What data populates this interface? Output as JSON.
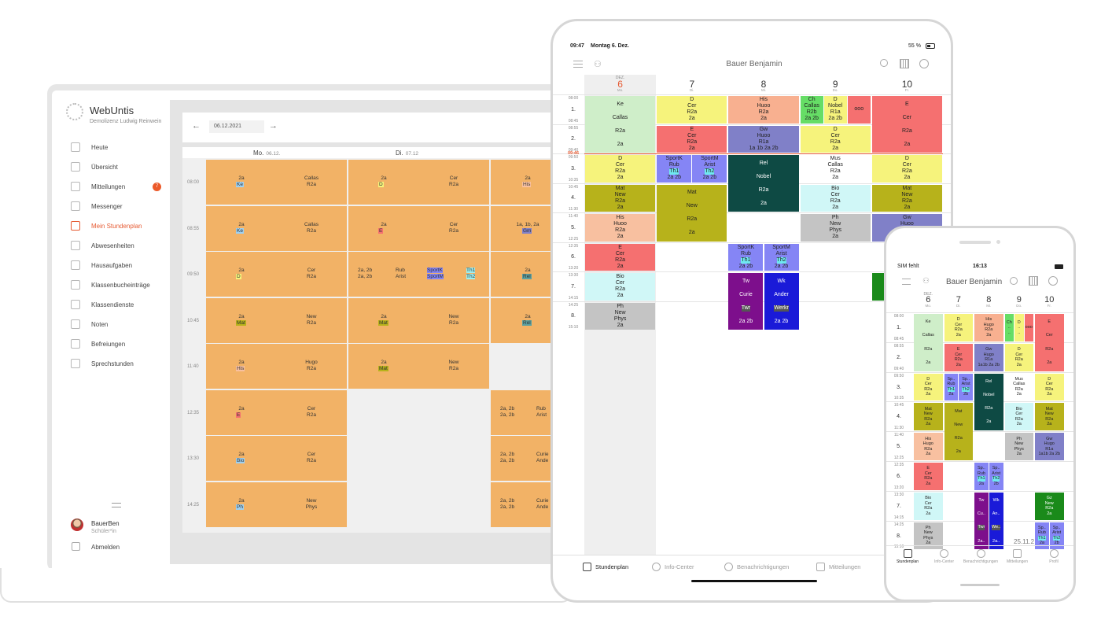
{
  "laptop": {
    "app_name": "WebUntis",
    "school": "Demolizenz Ludwig Reinwein",
    "date": "06.12.2021",
    "nav": [
      {
        "label": "Heute",
        "icon": "dashboard-icon"
      },
      {
        "label": "Übersicht",
        "icon": "overview-icon"
      },
      {
        "label": "Mitteilungen",
        "icon": "mail-icon",
        "badge": "7"
      },
      {
        "label": "Messenger",
        "icon": "chat-icon"
      },
      {
        "label": "Mein Stundenplan",
        "icon": "calendar-icon",
        "active": true
      },
      {
        "label": "Abwesenheiten",
        "icon": "absence-icon"
      },
      {
        "label": "Hausaufgaben",
        "icon": "homework-icon"
      },
      {
        "label": "Klassenbucheinträge",
        "icon": "classbook-icon"
      },
      {
        "label": "Klassendienste",
        "icon": "class-duties-icon"
      },
      {
        "label": "Noten",
        "icon": "grades-icon"
      },
      {
        "label": "Befreiungen",
        "icon": "exemption-icon"
      },
      {
        "label": "Sprechstunden",
        "icon": "office-hours-icon"
      }
    ],
    "user_name": "BauerBen",
    "user_role": "Schüler*in",
    "logout": "Abmelden",
    "days": [
      {
        "name": "Mo.",
        "date": "06.12."
      },
      {
        "name": "Di.",
        "date": "07.12"
      }
    ],
    "times": [
      "08:00",
      "08:55",
      "09:50",
      "10:45",
      "11:40",
      "12:35",
      "13:30",
      "14:25"
    ],
    "cells": [
      {
        "col": 0,
        "row": 0,
        "a": "2a",
        "b": "Ke",
        "c": "Callas",
        "d": "R2a"
      },
      {
        "col": 0,
        "row": 1,
        "a": "2a",
        "b": "Ke",
        "c": "Callas",
        "d": "R2a"
      },
      {
        "col": 0,
        "row": 2,
        "a": "2a",
        "b": "D",
        "c": "Cer",
        "d": "R2a"
      },
      {
        "col": 0,
        "row": 3,
        "a": "2a",
        "b": "Mat",
        "c": "New",
        "d": "R2a"
      },
      {
        "col": 0,
        "row": 4,
        "a": "2a",
        "b": "His",
        "c": "Hugo",
        "d": "R2a"
      },
      {
        "col": 0,
        "row": 5,
        "a": "2a",
        "b": "E",
        "c": "Cer",
        "d": "R2a"
      },
      {
        "col": 0,
        "row": 6,
        "a": "2a",
        "b": "Bio",
        "c": "Cer",
        "d": "R2a"
      },
      {
        "col": 0,
        "row": 7,
        "a": "2a",
        "b": "Ph",
        "c": "New",
        "d": "Phys"
      },
      {
        "col": 1,
        "row": 0,
        "a": "2a",
        "b": "D",
        "c": "Cer",
        "d": "R2a"
      },
      {
        "col": 1,
        "row": 1,
        "a": "2a",
        "b": "E",
        "c": "Cer",
        "d": "R2a"
      },
      {
        "col": 1,
        "row": 3,
        "a": "2a",
        "b": "Mat",
        "c": "New",
        "d": "R2a"
      },
      {
        "col": 1,
        "row": 4,
        "a": "2a",
        "b": "Mat",
        "c": "New",
        "d": "R2a"
      }
    ],
    "di_row2": {
      "a": "2a, 2b",
      "b": "2a, 2b",
      "c": "Rub",
      "d": "Arist",
      "e": "SportK",
      "f": "SportM",
      "g": "Th1",
      "h": "Th2"
    },
    "col3_cells": [
      {
        "row": 0,
        "a": "2a",
        "b": "His"
      },
      {
        "row": 1,
        "a": "1a, 1b, 2a",
        "b": "Gm"
      },
      {
        "row": 2,
        "a": "2a",
        "b": "Rel"
      },
      {
        "row": 3,
        "a": "2a",
        "b": "Rel"
      },
      {
        "row": 5,
        "a": "2a, 2b",
        "b": "2a, 2b",
        "c": "Rub",
        "d": "Arist"
      },
      {
        "row": 6,
        "a": "2a, 2b",
        "b": "2a, 2b",
        "c": "Curie",
        "d": "Ande"
      },
      {
        "row": 7,
        "a": "2a, 2b",
        "b": "2a, 2b",
        "c": "Curie",
        "d": "Ande"
      }
    ]
  },
  "ipad": {
    "time": "09:47",
    "date": "Montag 6. Dez.",
    "battery": "55 %",
    "title": "Bauer Benjamin",
    "month": "DEZ.",
    "days": [
      {
        "num": "6",
        "wd": "Mo.",
        "today": true
      },
      {
        "num": "7",
        "wd": "Di."
      },
      {
        "num": "8",
        "wd": "Mi."
      },
      {
        "num": "9",
        "wd": "Do."
      },
      {
        "num": "10",
        "wd": "Fr."
      }
    ],
    "periods": [
      {
        "n": "1.",
        "s": "08:00",
        "e": "08:45"
      },
      {
        "n": "2.",
        "s": "08:55",
        "e": "09:40"
      },
      {
        "n": "3.",
        "s": "09:50",
        "e": "10:35"
      },
      {
        "n": "4.",
        "s": "10:45",
        "e": "11:30"
      },
      {
        "n": "5.",
        "s": "11:40",
        "e": "12:25"
      },
      {
        "n": "6.",
        "s": "12:35",
        "e": "13:20"
      },
      {
        "n": "7.",
        "s": "13:30",
        "e": "14:15"
      },
      {
        "n": "8.",
        "s": "14:25",
        "e": "15:10"
      }
    ],
    "now": "09:46",
    "tabs": [
      "Stundenplan",
      "Info-Center",
      "Benachrichtigungen",
      "Mitteilungen"
    ],
    "lessons": [
      {
        "d": 0,
        "p": 0,
        "span": 2,
        "bg": "#cfeec9",
        "lines": [
          "Ke",
          "Callas",
          "R2a",
          "2a"
        ],
        "spread": true
      },
      {
        "d": 0,
        "p": 2,
        "bg": "#f6f37c",
        "lines": [
          "D",
          "Cer",
          "R2a",
          "2a"
        ]
      },
      {
        "d": 0,
        "p": 3,
        "bg": "#b7b21b",
        "lines": [
          "Mat",
          "New",
          "R2a",
          "2a"
        ]
      },
      {
        "d": 0,
        "p": 4,
        "bg": "#f8c0a0",
        "lines": [
          "His",
          "Huoo",
          "R2a",
          "2a"
        ]
      },
      {
        "d": 0,
        "p": 5,
        "bg": "#f57070",
        "lines": [
          "E",
          "Cer",
          "R2a",
          "2a"
        ]
      },
      {
        "d": 0,
        "p": 6,
        "bg": "#d0f7f7",
        "lines": [
          "Bio",
          "Cer",
          "R2a",
          "2a"
        ]
      },
      {
        "d": 0,
        "p": 7,
        "bg": "#c4c4c4",
        "lines": [
          "Ph",
          "New",
          "Phys",
          "2a"
        ]
      },
      {
        "d": 1,
        "p": 0,
        "bg": "#f6f37c",
        "lines": [
          "D",
          "Cer",
          "R2a",
          "2a"
        ]
      },
      {
        "d": 1,
        "p": 1,
        "bg": "#f57070",
        "lines": [
          "E",
          "Cer",
          "R2a",
          "2a"
        ]
      },
      {
        "d": 1,
        "p": 2,
        "half": 0,
        "bg": "#8585f5",
        "lines": [
          "SportK",
          "Rub",
          "Th1",
          "2a 2b"
        ]
      },
      {
        "d": 1,
        "p": 2,
        "half": 1,
        "bg": "#8585f5",
        "lines": [
          "SportM",
          "Arist",
          "Th2",
          "2a 2b"
        ]
      },
      {
        "d": 1,
        "p": 3,
        "span": 2,
        "bg": "#b7b21b",
        "lines": [
          "Mat",
          "New",
          "R2a",
          "2a"
        ],
        "spread": true
      },
      {
        "d": 2,
        "p": 0,
        "bg": "#f8b090",
        "lines": [
          "His",
          "Huoo",
          "R2a",
          "2a"
        ]
      },
      {
        "d": 2,
        "p": 1,
        "bg": "#8080c8",
        "lines": [
          "Gw",
          "Huoo",
          "R1a",
          "1a 1b 2a 2b"
        ]
      },
      {
        "d": 2,
        "p": 2,
        "span": 2,
        "bg": "#0e4a44",
        "fg": "#fff",
        "lines": [
          "Rel",
          "Nobel",
          "R2a",
          "2a"
        ],
        "spread": true
      },
      {
        "d": 2,
        "p": 5,
        "half": 0,
        "bg": "#8585f5",
        "lines": [
          "SportK",
          "Rub",
          "Th1",
          "2a 2b"
        ]
      },
      {
        "d": 2,
        "p": 5,
        "half": 1,
        "bg": "#8585f5",
        "lines": [
          "SportM",
          "Arist",
          "Th2",
          "2a 2b"
        ]
      },
      {
        "d": 2,
        "p": 6,
        "span": 2,
        "half": 0,
        "bg": "#7d0f8c",
        "fg": "#fff",
        "lines": [
          "Tw",
          "Curie",
          "Twr",
          "2a 2b"
        ],
        "spread": true
      },
      {
        "d": 2,
        "p": 6,
        "span": 2,
        "half": 1,
        "bg": "#1a1ad8",
        "fg": "#fff",
        "lines": [
          "Wk",
          "Ander",
          "Werkr",
          "2a 2b"
        ],
        "spread": true
      },
      {
        "d": 3,
        "p": 0,
        "q": 0,
        "bg": "#66dd66",
        "lines": [
          "Ch",
          "Callas",
          "R2b",
          "2a 2b"
        ]
      },
      {
        "d": 3,
        "p": 0,
        "q": 1,
        "bg": "#f6f37c",
        "lines": [
          "D",
          "Nobel",
          "R1a",
          "2a 2b"
        ]
      },
      {
        "d": 3,
        "p": 0,
        "q": 2,
        "bg": "#f57070",
        "lines": [
          "ooo"
        ]
      },
      {
        "d": 3,
        "p": 1,
        "bg": "#f6f37c",
        "lines": [
          "D",
          "Cer",
          "R2a",
          "2a"
        ]
      },
      {
        "d": 3,
        "p": 2,
        "bg": "#ffffff",
        "lines": [
          "Mus",
          "Callas",
          "R2a",
          "2a"
        ]
      },
      {
        "d": 3,
        "p": 3,
        "bg": "#d0f7f7",
        "lines": [
          "Bio",
          "Cer",
          "R2a",
          "2a"
        ]
      },
      {
        "d": 3,
        "p": 4,
        "bg": "#c4c4c4",
        "lines": [
          "Ph",
          "New",
          "Phys",
          "2a"
        ]
      },
      {
        "d": 4,
        "p": 0,
        "span": 2,
        "bg": "#f57070",
        "lines": [
          "E",
          "Cer",
          "R2a",
          "2a"
        ],
        "spread": true
      },
      {
        "d": 4,
        "p": 2,
        "bg": "#f6f37c",
        "lines": [
          "D",
          "Cer",
          "R2a",
          "2a"
        ]
      },
      {
        "d": 4,
        "p": 3,
        "bg": "#b7b21b",
        "lines": [
          "Mat",
          "New",
          "R2a",
          "2a"
        ]
      },
      {
        "d": 4,
        "p": 4,
        "bg": "#8080c8",
        "lines": [
          "Gw",
          "Huoo",
          "R1a",
          "1a 1b 2a 2b"
        ]
      },
      {
        "d": 4,
        "p": 6,
        "bg": "#1a8a1a",
        "lines": [
          ""
        ]
      }
    ]
  },
  "phone": {
    "carrier": "SIM fehlt",
    "time": "16:13",
    "title": "Bauer Benjamin",
    "month": "DEZ.",
    "days": [
      {
        "num": "6",
        "wd": "Mo."
      },
      {
        "num": "7",
        "wd": "Di."
      },
      {
        "num": "8",
        "wd": "Mi."
      },
      {
        "num": "9",
        "wd": "Do."
      },
      {
        "num": "10",
        "wd": "Fr."
      }
    ],
    "date_overlay": "25.11.2",
    "tabs": [
      "Stundenplan",
      "Info-Center",
      "Benachrichtigungen",
      "Mitteilungen",
      "Profil"
    ],
    "lessons": [
      {
        "d": 0,
        "p": 0,
        "span": 2,
        "bg": "#cfeec9",
        "lines": [
          "Ke",
          "Callas",
          "R2a",
          "2a"
        ],
        "spread": true
      },
      {
        "d": 0,
        "p": 2,
        "bg": "#f6f37c",
        "lines": [
          "D",
          "Cer",
          "R2a",
          "2a"
        ]
      },
      {
        "d": 0,
        "p": 3,
        "bg": "#b7b21b",
        "lines": [
          "Mat",
          "New",
          "R2a",
          "2a"
        ]
      },
      {
        "d": 0,
        "p": 4,
        "bg": "#f8c0a0",
        "lines": [
          "His",
          "Hugo",
          "R2a",
          "2a"
        ]
      },
      {
        "d": 0,
        "p": 5,
        "bg": "#f57070",
        "lines": [
          "E",
          "Cer",
          "R2a",
          "2a"
        ]
      },
      {
        "d": 0,
        "p": 6,
        "bg": "#d0f7f7",
        "lines": [
          "Bio",
          "Cer",
          "R2a",
          "2a"
        ]
      },
      {
        "d": 0,
        "p": 7,
        "bg": "#c4c4c4",
        "lines": [
          "Ph",
          "New",
          "Phys",
          "2a"
        ]
      },
      {
        "d": 1,
        "p": 0,
        "bg": "#f6f37c",
        "lines": [
          "D",
          "Cer",
          "R2a",
          "2a"
        ]
      },
      {
        "d": 1,
        "p": 1,
        "bg": "#f57070",
        "lines": [
          "E",
          "Cer",
          "R2a",
          "2a"
        ]
      },
      {
        "d": 1,
        "p": 2,
        "half": 0,
        "bg": "#8585f5",
        "lines": [
          "Sp..",
          "Rub",
          "Th1",
          "2a"
        ]
      },
      {
        "d": 1,
        "p": 2,
        "half": 1,
        "bg": "#8585f5",
        "lines": [
          "Sp..",
          "Arist",
          "Th2",
          "2b"
        ]
      },
      {
        "d": 1,
        "p": 3,
        "span": 2,
        "bg": "#b7b21b",
        "lines": [
          "Mat",
          "New",
          "R2a",
          "2a"
        ],
        "spread": true
      },
      {
        "d": 2,
        "p": 0,
        "bg": "#f8b090",
        "lines": [
          "His",
          "Hugo",
          "R2a",
          "2a"
        ]
      },
      {
        "d": 2,
        "p": 1,
        "bg": "#8080c8",
        "lines": [
          "Gw",
          "Hugo",
          "R1a",
          "1a1b 2a 2b"
        ]
      },
      {
        "d": 2,
        "p": 2,
        "span": 2,
        "bg": "#0e4a44",
        "fg": "#fff",
        "lines": [
          "Rel",
          "Nobel",
          "R2a",
          "2a"
        ],
        "spread": true
      },
      {
        "d": 2,
        "p": 5,
        "half": 0,
        "bg": "#8585f5",
        "lines": [
          "Sp..",
          "Rub",
          "Th1",
          "2a"
        ]
      },
      {
        "d": 2,
        "p": 5,
        "half": 1,
        "bg": "#8585f5",
        "lines": [
          "Sp..",
          "Arist",
          "Th2",
          "2b"
        ]
      },
      {
        "d": 2,
        "p": 6,
        "span": 2,
        "half": 0,
        "bg": "#7d0f8c",
        "fg": "#fff",
        "lines": [
          "Tw",
          "Cu..",
          "Twr",
          "2a.."
        ],
        "spread": true
      },
      {
        "d": 2,
        "p": 6,
        "span": 2,
        "half": 1,
        "bg": "#1a1ad8",
        "fg": "#fff",
        "lines": [
          "Wk",
          "An..",
          "We..",
          "2a.."
        ],
        "spread": true
      },
      {
        "d": 3,
        "p": 0,
        "q": 0,
        "bg": "#66dd66",
        "lines": [
          "Ch",
          "..",
          ".."
        ]
      },
      {
        "d": 3,
        "p": 0,
        "q": 1,
        "bg": "#f6f37c",
        "lines": [
          "D",
          "..",
          ".."
        ]
      },
      {
        "d": 3,
        "p": 0,
        "q": 2,
        "bg": "#f57070",
        "lines": [
          "ooo"
        ]
      },
      {
        "d": 3,
        "p": 1,
        "bg": "#f6f37c",
        "lines": [
          "D",
          "Cer",
          "R2a",
          "2a"
        ]
      },
      {
        "d": 3,
        "p": 2,
        "bg": "#ffffff",
        "lines": [
          "Mus",
          "Callas",
          "R2a",
          "2a"
        ]
      },
      {
        "d": 3,
        "p": 3,
        "bg": "#d0f7f7",
        "lines": [
          "Bio",
          "Cer",
          "R2a",
          "2a"
        ]
      },
      {
        "d": 3,
        "p": 4,
        "bg": "#c4c4c4",
        "lines": [
          "Ph",
          "New",
          "Phys",
          "2a"
        ]
      },
      {
        "d": 4,
        "p": 0,
        "span": 2,
        "bg": "#f57070",
        "lines": [
          "E",
          "Cer",
          "R2a",
          "2a"
        ],
        "spread": true
      },
      {
        "d": 4,
        "p": 2,
        "bg": "#f6f37c",
        "lines": [
          "D",
          "Cer",
          "R2a",
          "2a"
        ]
      },
      {
        "d": 4,
        "p": 3,
        "bg": "#b7b21b",
        "lines": [
          "Mat",
          "New",
          "R2a",
          "2a"
        ]
      },
      {
        "d": 4,
        "p": 4,
        "bg": "#8080c8",
        "lines": [
          "Gw",
          "Hugo",
          "R1a",
          "1a1b 2a 2b"
        ]
      },
      {
        "d": 4,
        "p": 6,
        "bg": "#1a8a1a",
        "fg": "#fff",
        "lines": [
          "Gz",
          "New",
          "R2a",
          "2a"
        ]
      },
      {
        "d": 4,
        "p": 7,
        "half": 0,
        "bg": "#8585f5",
        "lines": [
          "Sp..",
          "Rub",
          "Th1",
          "2a"
        ]
      },
      {
        "d": 4,
        "p": 7,
        "half": 1,
        "bg": "#8585f5",
        "lines": [
          "Sp..",
          "Arist",
          "Th2",
          "2b"
        ]
      }
    ]
  },
  "colors": {
    "accent": "#e65a32",
    "lesson_orange": "#f2b266",
    "badge": "#ec5a2a"
  }
}
